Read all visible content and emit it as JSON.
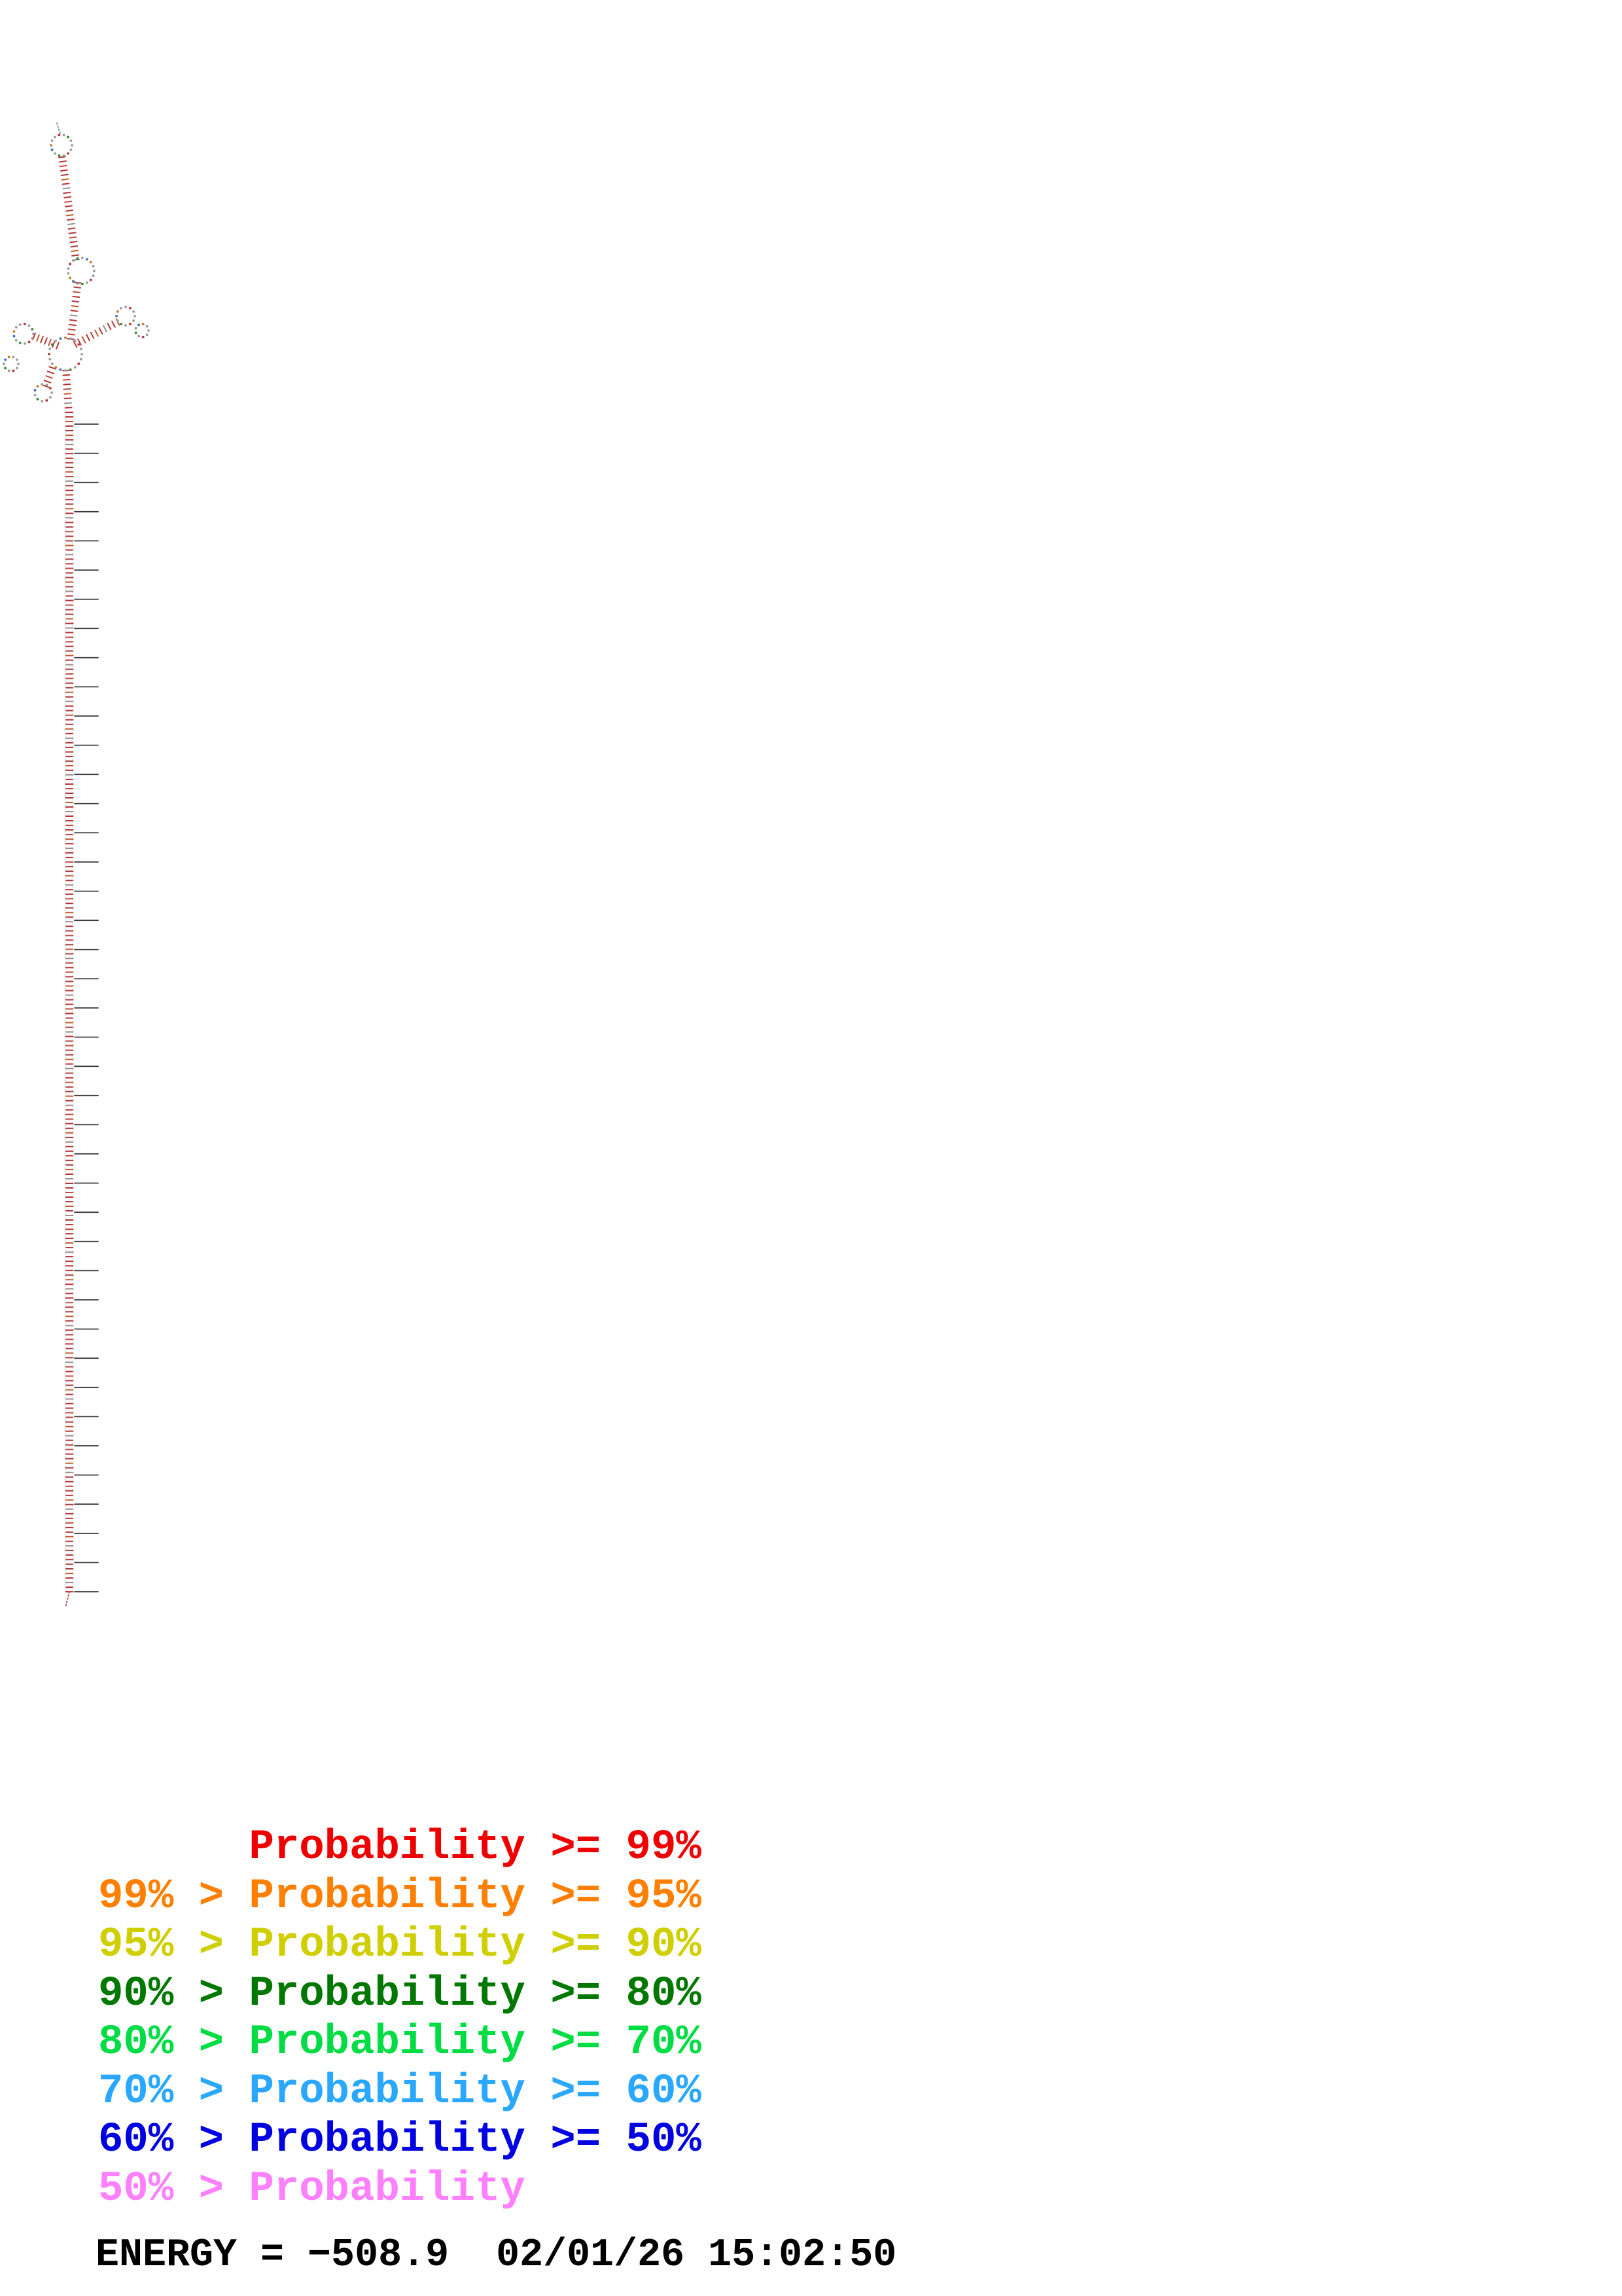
{
  "legend": {
    "entries": [
      {
        "label": "      Probability >= 99%",
        "color": "#ee0000"
      },
      {
        "label": "99% > Probability >= 95%",
        "color": "#ff7f00"
      },
      {
        "label": "95% > Probability >= 90%",
        "color": "#cfcf00"
      },
      {
        "label": "90% > Probability >= 80%",
        "color": "#007800"
      },
      {
        "label": "80% > Probability >= 70%",
        "color": "#00dd44"
      },
      {
        "label": "70% > Probability >= 60%",
        "color": "#2aa7ff"
      },
      {
        "label": "60% > Probability >= 50%",
        "color": "#0000e0"
      },
      {
        "label": "50% > Probability",
        "color": "#ff80ff"
      }
    ]
  },
  "footer": {
    "energy_text": "ENERGY = −508.9  02/01/26 15:02:50"
  }
}
